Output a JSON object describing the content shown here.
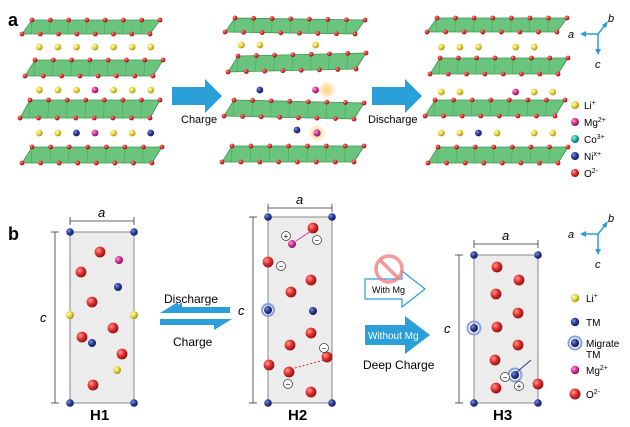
{
  "panels": {
    "a": "a",
    "b": "b"
  },
  "panel_a": {
    "arrows": {
      "charge": "Charge",
      "discharge": "Discharge"
    },
    "axes": {
      "a": "a",
      "b": "b",
      "c": "c"
    },
    "legend": [
      {
        "label": "Li",
        "sup": "+",
        "color": "#e8d83a"
      },
      {
        "label": "Mg",
        "sup": "2+",
        "color": "#d8319a"
      },
      {
        "label": "Co",
        "sup": "3+",
        "color": "#23b3b0"
      },
      {
        "label": "Ni",
        "sup": "x+",
        "color": "#2b3a9a"
      },
      {
        "label": "O",
        "sup": "2-",
        "color": "#d32626"
      }
    ]
  },
  "panel_b": {
    "cells": {
      "h1": "H1",
      "h2": "H2",
      "h3": "H3"
    },
    "lattice": {
      "a": "a",
      "c": "c"
    },
    "arrows": {
      "discharge": "Discharge",
      "charge": "Charge",
      "with_mg": "With Mg",
      "without_mg": "Without Mg",
      "deep_charge": "Deep Charge"
    },
    "axes": {
      "a": "a",
      "b": "b",
      "c": "c"
    },
    "charges": {
      "plus": "+",
      "minus": "−"
    },
    "legend": [
      {
        "label": "Li",
        "sup": "+",
        "color": "#e8d83a"
      },
      {
        "label": "TM",
        "sup": "",
        "color": "#2b3a9a"
      },
      {
        "label": "Migrate",
        "line2": "TM",
        "color": "#2b3a9a"
      },
      {
        "label": "Mg",
        "sup": "2+",
        "color": "#d8319a"
      },
      {
        "label": "O",
        "sup": "2-",
        "color": "#d32626"
      }
    ]
  },
  "colors": {
    "slab": "#5fbf73",
    "slab_edge": "#2f8a46",
    "oxygen": "#d32626",
    "lithium": "#e8d83a",
    "magnesium": "#d8319a",
    "cobalt": "#23b3b0",
    "nickel": "#2b3a9a",
    "arrow": "#2a9fd8",
    "cell_fill": "#ececec"
  }
}
